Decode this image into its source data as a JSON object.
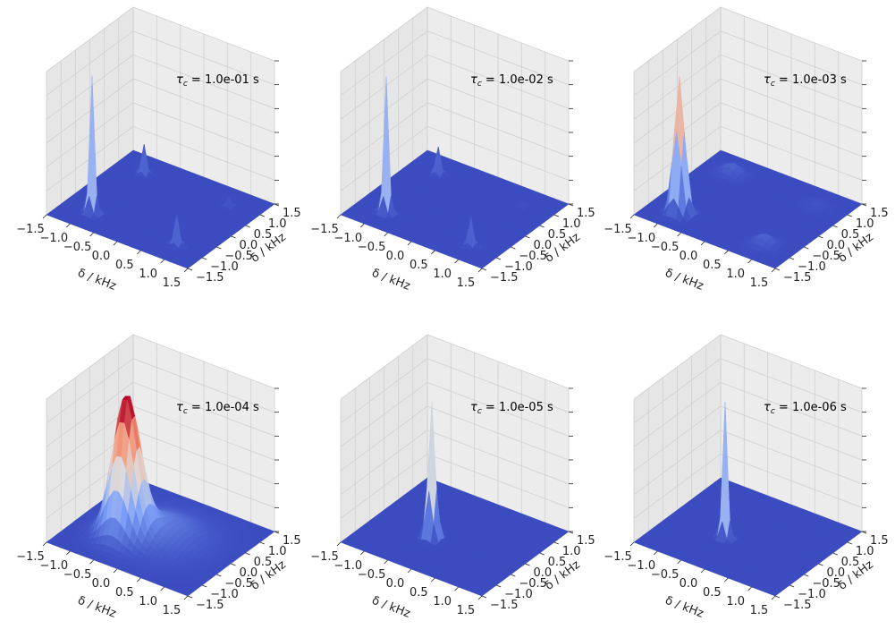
{
  "chart_data": {
    "type": "surface3d",
    "layout": "2x3 grid",
    "colormap": "coolwarm",
    "grid": true,
    "panels": [
      {
        "annotation": {
          "symbol": "τ",
          "subscript": "c",
          "text": " = 1.0e-01 s"
        },
        "xlabel": "δ / kHz",
        "ylabel": "δ / kHz",
        "xlim": [
          -1.5,
          1.5
        ],
        "ylim": [
          -1.5,
          1.5
        ],
        "xticks": [
          "−1.5",
          "−1.0",
          "−0.5",
          "0.0",
          "0.5",
          "1.0",
          "1.5"
        ],
        "yticks": [
          "−1.5",
          "−1.0",
          "−0.5",
          "0.0",
          "0.5",
          "1.0",
          "1.5"
        ],
        "peaks": [
          {
            "x": -0.9,
            "y": -0.9,
            "height": 1.0,
            "width": 0.05
          },
          {
            "x": -0.9,
            "y": 0.9,
            "height": 0.22,
            "width": 0.05
          },
          {
            "x": 0.9,
            "y": -0.9,
            "height": 0.22,
            "width": 0.05
          },
          {
            "x": 0.9,
            "y": 0.9,
            "height": 0.07,
            "width": 0.05
          }
        ]
      },
      {
        "annotation": {
          "symbol": "τ",
          "subscript": "c",
          "text": " = 1.0e-02 s"
        },
        "xlabel": "δ / kHz",
        "ylabel": "δ / kHz",
        "xlim": [
          -1.5,
          1.5
        ],
        "ylim": [
          -1.5,
          1.5
        ],
        "xticks": [
          "−1.5",
          "−1.0",
          "−0.5",
          "0.0",
          "0.5",
          "1.0",
          "1.5"
        ],
        "yticks": [
          "−1.5",
          "−1.0",
          "−0.5",
          "0.0",
          "0.5",
          "1.0",
          "1.5"
        ],
        "peaks": [
          {
            "x": -0.9,
            "y": -0.9,
            "height": 1.0,
            "width": 0.05
          },
          {
            "x": -0.9,
            "y": 0.9,
            "height": 0.2,
            "width": 0.05
          },
          {
            "x": 0.9,
            "y": -0.9,
            "height": 0.2,
            "width": 0.05
          },
          {
            "x": 0.9,
            "y": 0.9,
            "height": 0.03,
            "width": 0.05
          }
        ]
      },
      {
        "annotation": {
          "symbol": "τ",
          "subscript": "c",
          "text": " = 1.0e-03 s"
        },
        "xlabel": "δ / kHz",
        "ylabel": "δ / kHz",
        "xlim": [
          -1.5,
          1.5
        ],
        "ylim": [
          -1.5,
          1.5
        ],
        "xticks": [
          "−1.5",
          "−1.0",
          "−0.5",
          "0.0",
          "0.5",
          "1.0",
          "1.5"
        ],
        "yticks": [
          "−1.5",
          "−1.0",
          "−0.5",
          "0.0",
          "0.5",
          "1.0",
          "1.5"
        ],
        "peaks": [
          {
            "x": -0.9,
            "y": -0.9,
            "height": 0.9,
            "width": 0.1
          },
          {
            "x": -0.9,
            "y": 0.9,
            "height": 0.07,
            "width": 0.15
          },
          {
            "x": 0.9,
            "y": -0.9,
            "height": 0.07,
            "width": 0.15
          },
          {
            "x": 0.9,
            "y": 0.9,
            "height": 0.02,
            "width": 0.15
          }
        ]
      },
      {
        "annotation": {
          "symbol": "τ",
          "subscript": "c",
          "text": " = 1.0e-04 s"
        },
        "xlabel": "δ / kHz",
        "ylabel": "δ / kHz",
        "xlim": [
          -1.5,
          1.5
        ],
        "ylim": [
          -1.5,
          1.5
        ],
        "xticks": [
          "−1.5",
          "−1.0",
          "−0.5",
          "0.0",
          "0.5",
          "1.0",
          "1.5"
        ],
        "yticks": [
          "−1.5",
          "−1.0",
          "−0.5",
          "0.0",
          "0.5",
          "1.0",
          "1.5"
        ],
        "peaks": [
          {
            "x": -0.45,
            "y": -0.45,
            "height": 0.85,
            "width": 0.25
          },
          {
            "x": 0.0,
            "y": 0.0,
            "height": 0.12,
            "width": 0.55
          }
        ]
      },
      {
        "annotation": {
          "symbol": "τ",
          "subscript": "c",
          "text": " = 1.0e-05 s"
        },
        "xlabel": "δ / kHz",
        "ylabel": "δ / kHz",
        "xlim": [
          -1.5,
          1.5
        ],
        "ylim": [
          -1.5,
          1.5
        ],
        "xticks": [
          "−1.5",
          "−1.0",
          "−0.5",
          "0.0",
          "0.5",
          "1.0",
          "1.5"
        ],
        "yticks": [
          "−1.5",
          "−1.0",
          "−0.5",
          "0.0",
          "0.5",
          "1.0",
          "1.5"
        ],
        "peaks": [
          {
            "x": -0.3,
            "y": -0.3,
            "height": 0.95,
            "width": 0.07
          }
        ]
      },
      {
        "annotation": {
          "symbol": "τ",
          "subscript": "c",
          "text": " = 1.0e-06 s"
        },
        "xlabel": "δ / kHz",
        "ylabel": "δ / kHz",
        "xlim": [
          -1.5,
          1.5
        ],
        "ylim": [
          -1.5,
          1.5
        ],
        "xticks": [
          "−1.5",
          "−1.0",
          "−0.5",
          "0.0",
          "0.5",
          "1.0",
          "1.5"
        ],
        "yticks": [
          "−1.5",
          "−1.0",
          "−0.5",
          "0.0",
          "0.5",
          "1.0",
          "1.5"
        ],
        "peaks": [
          {
            "x": -0.3,
            "y": -0.3,
            "height": 1.0,
            "width": 0.05
          }
        ]
      }
    ]
  }
}
